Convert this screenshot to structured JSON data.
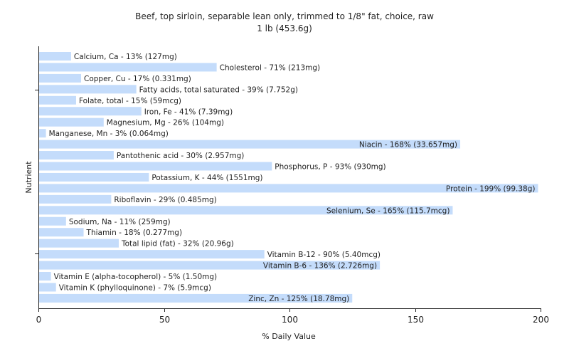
{
  "chart_data": {
    "type": "bar",
    "orientation": "horizontal",
    "title": "Beef, top sirloin, separable lean only, trimmed to 1/8\" fat, choice, raw",
    "subtitle": "1 lb (453.6g)",
    "xlabel": "% Daily Value",
    "ylabel": "Nutrient",
    "xlim": [
      0,
      200
    ],
    "xticks": [
      0,
      50,
      100,
      150,
      200
    ],
    "grid": false,
    "bar_color": "#c4dcfb",
    "categories": [
      "Calcium, Ca",
      "Cholesterol",
      "Copper, Cu",
      "Fatty acids, total saturated",
      "Folate, total",
      "Iron, Fe",
      "Magnesium, Mg",
      "Manganese, Mn",
      "Niacin",
      "Pantothenic acid",
      "Phosphorus, P",
      "Potassium, K",
      "Protein",
      "Riboflavin",
      "Selenium, Se",
      "Sodium, Na",
      "Thiamin",
      "Total lipid (fat)",
      "Vitamin B-12",
      "Vitamin B-6",
      "Vitamin E (alpha-tocopherol)",
      "Vitamin K (phylloquinone)",
      "Zinc, Zn"
    ],
    "values": [
      13,
      71,
      17,
      39,
      15,
      41,
      26,
      3,
      168,
      30,
      93,
      44,
      199,
      29,
      165,
      11,
      18,
      32,
      90,
      136,
      5,
      7,
      125
    ],
    "labels": [
      "Calcium, Ca - 13% (127mg)",
      "Cholesterol - 71% (213mg)",
      "Copper, Cu - 17% (0.331mg)",
      "Fatty acids, total saturated - 39% (7.752g)",
      "Folate, total - 15% (59mcg)",
      "Iron, Fe - 41% (7.39mg)",
      "Magnesium, Mg - 26% (104mg)",
      "Manganese, Mn - 3% (0.064mg)",
      "Niacin - 168% (33.657mg)",
      "Pantothenic acid - 30% (2.957mg)",
      "Phosphorus, P - 93% (930mg)",
      "Potassium, K - 44% (1551mg)",
      "Protein - 199% (99.38g)",
      "Riboflavin - 29% (0.485mg)",
      "Selenium, Se - 165% (115.7mcg)",
      "Sodium, Na - 11% (259mg)",
      "Thiamin - 18% (0.277mg)",
      "Total lipid (fat) - 32% (20.96g)",
      "Vitamin B-12 - 90% (5.40mcg)",
      "Vitamin B-6 - 136% (2.726mg)",
      "Vitamin E (alpha-tocopherol) - 5% (1.50mg)",
      "Vitamin K (phylloquinone) - 7% (5.9mcg)",
      "Zinc, Zn - 125% (18.78mg)"
    ]
  }
}
